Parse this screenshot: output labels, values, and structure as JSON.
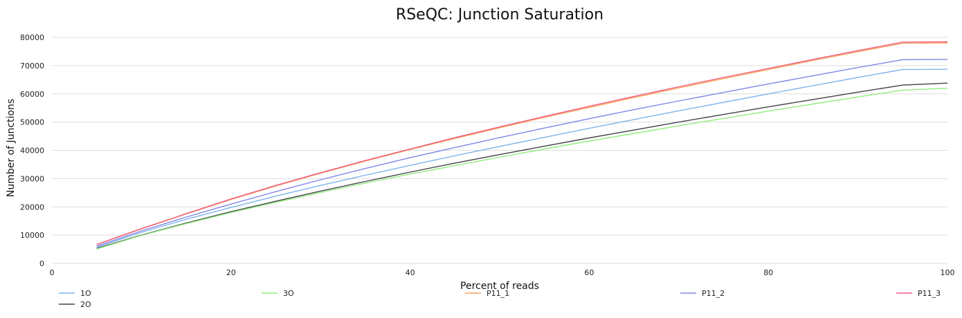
{
  "chart_data": {
    "type": "line",
    "title": "RSeQC: Junction Saturation",
    "xlabel": "Percent of reads",
    "ylabel": "Number of Junctions",
    "xlim": [
      0,
      100
    ],
    "ylim": [
      0,
      80000
    ],
    "xticks": [
      0,
      20,
      40,
      60,
      80,
      100
    ],
    "yticks": [
      0,
      10000,
      20000,
      30000,
      40000,
      50000,
      60000,
      70000,
      80000
    ],
    "grid": "horizontal",
    "legend": "bottom",
    "x": [
      5,
      10,
      15,
      20,
      25,
      30,
      35,
      40,
      45,
      50,
      55,
      60,
      65,
      70,
      75,
      80,
      85,
      90,
      95,
      100
    ],
    "series": [
      {
        "name": "1O",
        "color": "#7cb5ec",
        "values": [
          5700,
          11000,
          15600,
          19800,
          23800,
          27600,
          31200,
          34700,
          38100,
          41400,
          44600,
          47800,
          50900,
          54000,
          57000,
          60000,
          62900,
          65800,
          68600,
          68700
        ]
      },
      {
        "name": "2O",
        "color": "#434348",
        "values": [
          5300,
          10000,
          14300,
          18300,
          22000,
          25600,
          29000,
          32300,
          35500,
          38500,
          41500,
          44400,
          47200,
          50000,
          52700,
          55400,
          58000,
          60600,
          63100,
          63800
        ]
      },
      {
        "name": "3O",
        "color": "#90ed7d",
        "values": [
          5100,
          9900,
          14100,
          18000,
          21600,
          25100,
          28400,
          31600,
          34600,
          37600,
          40500,
          43300,
          46000,
          48700,
          51300,
          53900,
          56400,
          58900,
          61300,
          62000
        ]
      },
      {
        "name": "P11_1",
        "color": "#f7a35c",
        "values": [
          6600,
          12200,
          17500,
          22600,
          27400,
          31900,
          36200,
          40300,
          44200,
          48000,
          51700,
          55200,
          58700,
          62100,
          65400,
          68600,
          71800,
          74900,
          77900,
          78000
        ]
      },
      {
        "name": "P11_2",
        "color": "#8085e9",
        "values": [
          6100,
          11500,
          16400,
          21000,
          25400,
          29600,
          33600,
          37400,
          41000,
          44500,
          47900,
          51200,
          54400,
          57500,
          60500,
          63500,
          66400,
          69300,
          72100,
          72200
        ]
      },
      {
        "name": "P11_3",
        "color": "#f15c80",
        "values": [
          6700,
          12300,
          17600,
          22800,
          27600,
          32100,
          36400,
          40500,
          44500,
          48300,
          52000,
          55600,
          59100,
          62500,
          65800,
          69000,
          72200,
          75300,
          78300,
          78400
        ]
      }
    ]
  }
}
